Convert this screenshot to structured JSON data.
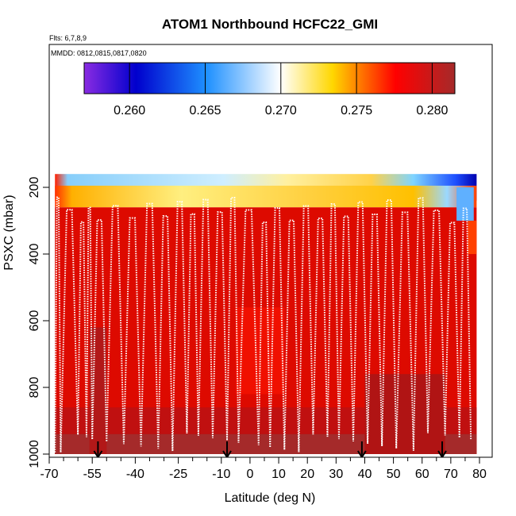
{
  "chart_data": {
    "type": "heatmap",
    "title": "ATOM1 Northbound HCFC22_GMI",
    "subtitle_flights": "Flts: 6,7,8,9",
    "subtitle_dates": "MMDD: 0812,0815,0817,0820",
    "xlabel": "Latitude (deg N)",
    "ylabel": "PSXC (mbar)",
    "xlim": [
      -70,
      80
    ],
    "ylim": [
      1000,
      100
    ],
    "y_reversed": true,
    "x_ticks": [
      -70,
      -55,
      -40,
      -25,
      -10,
      0,
      10,
      20,
      30,
      40,
      50,
      60,
      70,
      80
    ],
    "x_ticks_minor": [
      -65,
      -60,
      -50,
      -45,
      -35,
      -30,
      -20,
      -15,
      -5,
      5,
      15,
      25,
      35,
      45,
      55,
      65,
      75
    ],
    "y_ticks": [
      200,
      400,
      600,
      800,
      1000
    ],
    "colorbar": {
      "min": 0.257,
      "max": 0.2815,
      "ticks": [
        0.26,
        0.265,
        0.27,
        0.275,
        0.28
      ],
      "tick_labels": [
        "0.260",
        "0.265",
        "0.270",
        "0.275",
        "0.280"
      ],
      "colors": [
        "#8a2be2",
        "#0000cd",
        "#1e90ff",
        "#ffffff",
        "#ffd700",
        "#ff0000",
        "#a52a2a"
      ]
    },
    "cells": [
      {
        "lat": [
          -68,
          79
        ],
        "p": [
          160,
          195
        ],
        "value": 0.2665
      },
      {
        "lat": [
          -68,
          79
        ],
        "p": [
          195,
          240
        ],
        "value": 0.274
      },
      {
        "lat": [
          -68,
          79
        ],
        "p": [
          240,
          1000
        ],
        "value": 0.2795
      },
      {
        "lat": [
          -68,
          79
        ],
        "p": [
          240,
          300
        ],
        "value": 0.2785
      },
      {
        "lat": [
          -56,
          -52
        ],
        "p": [
          800,
          1000
        ],
        "value": 0.2812
      },
      {
        "lat": [
          40,
          68
        ],
        "p": [
          860,
          1000
        ],
        "value": 0.2812
      },
      {
        "lat": [
          -20,
          30
        ],
        "p": [
          920,
          1000
        ],
        "value": 0.2808
      },
      {
        "lat": [
          -68,
          79
        ],
        "p": [
          960,
          1000
        ],
        "value": 0.281
      }
    ],
    "flight_profiles_lat": [
      -68,
      -66,
      -60,
      -57,
      -55,
      -50,
      -44,
      -38,
      -32,
      -27,
      -22,
      -18,
      -13,
      -8,
      -4,
      3,
      7,
      12,
      17,
      22,
      27,
      31,
      36,
      41,
      46,
      51,
      57,
      62,
      68,
      73,
      77
    ],
    "profile_top_p": 230,
    "profile_bottom_p": 995,
    "flight_dates_markers_lat": [
      -53,
      -8,
      39,
      67
    ]
  }
}
